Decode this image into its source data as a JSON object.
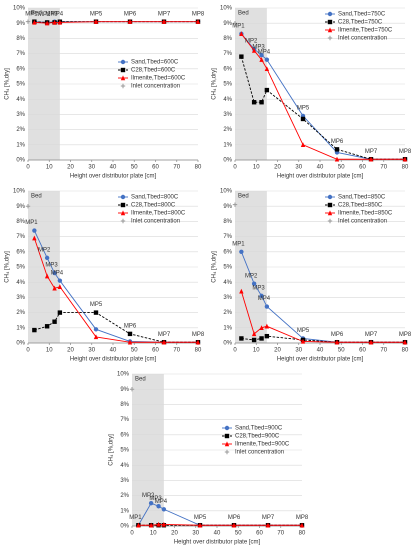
{
  "chart_data": [
    {
      "type": "line",
      "xlabel": "Height over distributor plate [cm]",
      "ylabel": "CH₄ [%,dry]",
      "bed_label": "Bed",
      "bed_xlim": [
        0,
        15
      ],
      "x": [
        3,
        9,
        12.5,
        15,
        32,
        48,
        64,
        80
      ],
      "annotations": [
        "MP1",
        "MP2",
        "MP3",
        "MP4",
        "MP5",
        "MP6",
        "MP7",
        "MP8"
      ],
      "xlim": [
        0,
        80
      ],
      "xticks": [
        0,
        10,
        20,
        30,
        40,
        50,
        60,
        70,
        80
      ],
      "ylim": [
        0,
        10
      ],
      "yticks": [
        {
          "value": 0,
          "label": "0%"
        },
        {
          "value": 1,
          "label": "1%"
        },
        {
          "value": 2,
          "label": "2%"
        },
        {
          "value": 3,
          "label": "3%"
        },
        {
          "value": 4,
          "label": "4%"
        },
        {
          "value": 5,
          "label": "5%"
        },
        {
          "value": 6,
          "label": "6%"
        },
        {
          "value": 7,
          "label": "7%"
        },
        {
          "value": 8,
          "label": "8%"
        },
        {
          "value": 9,
          "label": "9%"
        },
        {
          "value": 10,
          "label": "10%"
        }
      ],
      "grid": true,
      "legend": "right",
      "series": [
        {
          "name": "Sand,Tbed=600C",
          "color": "#4472c4",
          "marker": "circle",
          "dash": false,
          "values": [
            9.1,
            9.05,
            9.1,
            9.1,
            9.1,
            9.1,
            9.1,
            9.1
          ]
        },
        {
          "name": "C28,Tbed=600C",
          "color": "#000000",
          "marker": "square",
          "dash": true,
          "values": [
            9.1,
            9.05,
            9.05,
            9.1,
            9.1,
            9.1,
            9.1,
            9.1
          ]
        },
        {
          "name": "Ilmenite,Tbed=600C",
          "color": "#ff0000",
          "marker": "triangle",
          "dash": false,
          "values": [
            9.05,
            9.0,
            9.05,
            9.05,
            9.1,
            9.1,
            9.1,
            9.1
          ]
        },
        {
          "name": "Inlet concentration",
          "color": "#999999",
          "marker": "plus",
          "dash": false,
          "x": [
            0
          ],
          "values": [
            9.1
          ]
        }
      ]
    },
    {
      "type": "line",
      "xlabel": "Height over distributor plate [cm]",
      "ylabel": "CH₄ [%,dry]",
      "bed_label": "Bed",
      "bed_xlim": [
        0,
        15
      ],
      "x": [
        3,
        9,
        12.5,
        15,
        32,
        48,
        64,
        80
      ],
      "annotations": [
        "MP1",
        "MP2",
        "MP3",
        "MP4",
        "MP5",
        "MP6",
        "MP7",
        "MP8"
      ],
      "xlim": [
        0,
        80
      ],
      "xticks": [
        0,
        10,
        20,
        30,
        40,
        50,
        60,
        70,
        80
      ],
      "ylim": [
        0,
        10
      ],
      "yticks": [
        {
          "value": 0,
          "label": "0%"
        },
        {
          "value": 1,
          "label": "1%"
        },
        {
          "value": 2,
          "label": "2%"
        },
        {
          "value": 3,
          "label": "3%"
        },
        {
          "value": 4,
          "label": "4%"
        },
        {
          "value": 5,
          "label": "5%"
        },
        {
          "value": 6,
          "label": "6%"
        },
        {
          "value": 7,
          "label": "7%"
        },
        {
          "value": 8,
          "label": "8%"
        },
        {
          "value": 9,
          "label": "9%"
        },
        {
          "value": 10,
          "label": "10%"
        }
      ],
      "grid": true,
      "legend": "upper right",
      "series": [
        {
          "name": "Sand,Tbed=750C",
          "color": "#4472c4",
          "marker": "circle",
          "dash": false,
          "values": [
            8.3,
            7.3,
            6.9,
            6.6,
            2.9,
            0.5,
            0.05,
            0.05
          ]
        },
        {
          "name": "C28,Tbed=750C",
          "color": "#000000",
          "marker": "square",
          "dash": true,
          "values": [
            6.8,
            3.8,
            3.8,
            4.6,
            2.7,
            0.7,
            0.05,
            0.05
          ]
        },
        {
          "name": "Ilmenite,Tbed=750C",
          "color": "#ff0000",
          "marker": "triangle",
          "dash": false,
          "values": [
            8.3,
            7.2,
            6.6,
            6.0,
            1.0,
            0.05,
            0.05,
            0.05
          ]
        },
        {
          "name": "Inlet concentration",
          "color": "#999999",
          "marker": "plus",
          "dash": false,
          "x": [
            0
          ],
          "values": [
            9.0
          ]
        }
      ]
    },
    {
      "type": "line",
      "xlabel": "Height over distributor plate [cm]",
      "ylabel": "CH₄ [%,dry]",
      "bed_label": "Bed",
      "bed_xlim": [
        0,
        15
      ],
      "x": [
        3,
        9,
        12.5,
        15,
        32,
        48,
        64,
        80
      ],
      "annotations": [
        "MP1",
        "MP2",
        "MP3",
        "MP4",
        "MP5",
        "MP6",
        "MP7",
        "MP8"
      ],
      "xlim": [
        0,
        80
      ],
      "xticks": [
        0,
        10,
        20,
        30,
        40,
        50,
        60,
        70,
        80
      ],
      "ylim": [
        0,
        10
      ],
      "yticks": [
        {
          "value": 0,
          "label": "0%"
        },
        {
          "value": 1,
          "label": "1%"
        },
        {
          "value": 2,
          "label": "2%"
        },
        {
          "value": 3,
          "label": "3%"
        },
        {
          "value": 4,
          "label": "4%"
        },
        {
          "value": 5,
          "label": "5%"
        },
        {
          "value": 6,
          "label": "6%"
        },
        {
          "value": 7,
          "label": "7%"
        },
        {
          "value": 8,
          "label": "8%"
        },
        {
          "value": 9,
          "label": "9%"
        },
        {
          "value": 10,
          "label": "10%"
        }
      ],
      "grid": true,
      "legend": "upper right",
      "series": [
        {
          "name": "Sand,Tbed=800C",
          "color": "#4472c4",
          "marker": "circle",
          "dash": false,
          "values": [
            7.4,
            5.6,
            4.6,
            4.1,
            0.9,
            0.1,
            0.05,
            0.05
          ]
        },
        {
          "name": "C28,Tbed=800C",
          "color": "#000000",
          "marker": "square",
          "dash": true,
          "values": [
            0.85,
            1.1,
            1.4,
            2.0,
            2.0,
            0.6,
            0.05,
            0.05
          ]
        },
        {
          "name": "Ilmenite,Tbed=800C",
          "color": "#ff0000",
          "marker": "triangle",
          "dash": false,
          "values": [
            6.9,
            4.4,
            3.6,
            3.7,
            0.4,
            0.05,
            0.05,
            0.05
          ]
        },
        {
          "name": "Inlet concentration",
          "color": "#999999",
          "marker": "plus",
          "dash": false,
          "x": [
            0
          ],
          "values": [
            9.0
          ]
        }
      ]
    },
    {
      "type": "line",
      "xlabel": "Height over distributor plate [cm]",
      "ylabel": "CH₄ [%,dry]",
      "bed_label": "Bed",
      "bed_xlim": [
        0,
        15
      ],
      "x": [
        3,
        9,
        12.5,
        15,
        32,
        48,
        64,
        80
      ],
      "annotations": [
        "MP1",
        "MP2",
        "MP3",
        "MP4",
        "MP5",
        "MP6",
        "MP7",
        "MP8"
      ],
      "xlim": [
        0,
        80
      ],
      "xticks": [
        0,
        10,
        20,
        30,
        40,
        50,
        60,
        70,
        80
      ],
      "ylim": [
        0,
        10
      ],
      "yticks": [
        {
          "value": 0,
          "label": "0%"
        },
        {
          "value": 1,
          "label": "1%"
        },
        {
          "value": 2,
          "label": "2%"
        },
        {
          "value": 3,
          "label": "3%"
        },
        {
          "value": 4,
          "label": "4%"
        },
        {
          "value": 5,
          "label": "5%"
        },
        {
          "value": 6,
          "label": "6%"
        },
        {
          "value": 7,
          "label": "7%"
        },
        {
          "value": 8,
          "label": "8%"
        },
        {
          "value": 9,
          "label": "9%"
        },
        {
          "value": 10,
          "label": "10%"
        }
      ],
      "grid": true,
      "legend": "upper right",
      "series": [
        {
          "name": "Sand,Tbed=850C",
          "color": "#4472c4",
          "marker": "circle",
          "dash": false,
          "values": [
            6.0,
            3.9,
            3.1,
            2.4,
            0.3,
            0.05,
            0.05,
            0.05
          ]
        },
        {
          "name": "C28,Tbed=850C",
          "color": "#000000",
          "marker": "square",
          "dash": true,
          "values": [
            0.3,
            0.2,
            0.3,
            0.45,
            0.2,
            0.05,
            0.05,
            0.05
          ]
        },
        {
          "name": "Ilmenite,Tbed=850C",
          "color": "#ff0000",
          "marker": "triangle",
          "dash": false,
          "values": [
            3.4,
            0.6,
            1.0,
            1.1,
            0.1,
            0.05,
            0.05,
            0.05
          ]
        },
        {
          "name": "Inlet concentration",
          "color": "#999999",
          "marker": "plus",
          "dash": false,
          "x": [
            0
          ],
          "values": [
            9.1
          ]
        }
      ]
    },
    {
      "type": "line",
      "xlabel": "Height over distributor plate [cm]",
      "ylabel": "CH₄ [%,dry]",
      "bed_label": "Bed",
      "bed_xlim": [
        0,
        15
      ],
      "x": [
        3,
        9,
        12.5,
        15,
        32,
        48,
        64,
        80
      ],
      "annotations": [
        "MP1",
        "MP2",
        "MP3",
        "MP4",
        "MP5",
        "MP6",
        "MP7",
        "MP8"
      ],
      "xlim": [
        0,
        80
      ],
      "xticks": [
        0,
        10,
        20,
        30,
        40,
        50,
        60,
        70,
        80
      ],
      "ylim": [
        0,
        10
      ],
      "yticks": [
        {
          "value": 0,
          "label": "0%"
        },
        {
          "value": 1,
          "label": "1%"
        },
        {
          "value": 2,
          "label": "2%"
        },
        {
          "value": 3,
          "label": "3%"
        },
        {
          "value": 4,
          "label": "4%"
        },
        {
          "value": 5,
          "label": "5%"
        },
        {
          "value": 6,
          "label": "6%"
        },
        {
          "value": 7,
          "label": "7%"
        },
        {
          "value": 8,
          "label": "8%"
        },
        {
          "value": 9,
          "label": "9%"
        },
        {
          "value": 10,
          "label": "10%"
        }
      ],
      "grid": true,
      "legend": "right",
      "series": [
        {
          "name": "Sand,Tbed=900C",
          "color": "#4472c4",
          "marker": "circle",
          "dash": false,
          "values": [
            0.05,
            1.5,
            1.3,
            1.1,
            0.05,
            0.05,
            0.05,
            0.05
          ]
        },
        {
          "name": "C28,Tbed=900C",
          "color": "#000000",
          "marker": "square",
          "dash": true,
          "values": [
            0.05,
            0.05,
            0.05,
            0.05,
            0.05,
            0.05,
            0.05,
            0.05
          ]
        },
        {
          "name": "Ilmenite,Tbed=900C",
          "color": "#ff0000",
          "marker": "triangle",
          "dash": false,
          "values": [
            0.05,
            0.05,
            0.1,
            0.1,
            0.05,
            0.05,
            0.05,
            0.05
          ]
        },
        {
          "name": "Inlet concentration",
          "color": "#999999",
          "marker": "plus",
          "dash": false,
          "x": [
            0
          ],
          "values": [
            9.0
          ]
        }
      ]
    }
  ]
}
